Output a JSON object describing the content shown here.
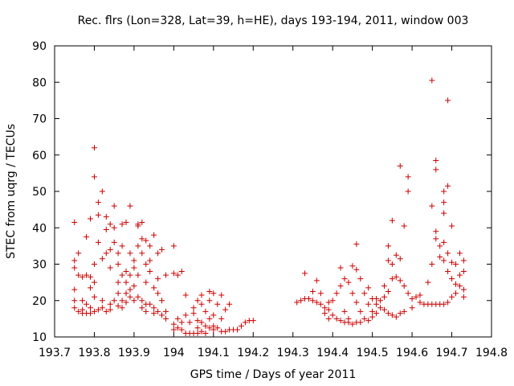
{
  "chart_data": {
    "type": "scatter",
    "title": "Rec. flrs (Lon=328, Lat=39, h=HE), days 193-194, 2011, window 003",
    "xlabel": "GPS time / Days of year 2011",
    "ylabel": "STEC from uqrg / TECUs",
    "xlim": [
      193.7,
      194.8
    ],
    "ylim": [
      10,
      90
    ],
    "xticks": [
      193.7,
      193.8,
      193.9,
      194.0,
      194.1,
      194.2,
      194.3,
      194.4,
      194.5,
      194.6,
      194.7,
      194.8
    ],
    "xtick_labels": [
      "193.7",
      "193.8",
      "193.9",
      "194",
      "194.1",
      "194.2",
      "194.3",
      "194.4",
      "194.5",
      "194.6",
      "194.7",
      "194.8"
    ],
    "yticks": [
      10,
      20,
      30,
      40,
      50,
      60,
      70,
      80,
      90
    ],
    "ytick_labels": [
      "10",
      "20",
      "30",
      "40",
      "50",
      "60",
      "70",
      "80",
      "90"
    ],
    "grid": false,
    "marker": "plus",
    "color": "#cc0000",
    "series": [
      {
        "points": [
          [
            193.75,
            41.5
          ],
          [
            193.75,
            31
          ],
          [
            193.75,
            29
          ],
          [
            193.75,
            23
          ],
          [
            193.75,
            20
          ],
          [
            193.75,
            18
          ],
          [
            193.76,
            33
          ],
          [
            193.76,
            27
          ],
          [
            193.76,
            17
          ],
          [
            193.77,
            26.5
          ],
          [
            193.77,
            20
          ],
          [
            193.77,
            17.5
          ],
          [
            193.77,
            16.5
          ],
          [
            193.78,
            37.5
          ],
          [
            193.78,
            27
          ],
          [
            193.78,
            19
          ],
          [
            193.78,
            16.5
          ],
          [
            193.79,
            26.5
          ],
          [
            193.79,
            23.5
          ],
          [
            193.79,
            18
          ],
          [
            193.79,
            16.5
          ],
          [
            193.79,
            42.5
          ],
          [
            193.8,
            62
          ],
          [
            193.8,
            54
          ],
          [
            193.8,
            30
          ],
          [
            193.8,
            25
          ],
          [
            193.8,
            21
          ],
          [
            193.8,
            17
          ],
          [
            193.81,
            47
          ],
          [
            193.81,
            43.5
          ],
          [
            193.81,
            36
          ],
          [
            193.81,
            17.5
          ],
          [
            193.82,
            50
          ],
          [
            193.82,
            31.5
          ],
          [
            193.82,
            20
          ],
          [
            193.82,
            18
          ],
          [
            193.83,
            43
          ],
          [
            193.83,
            39.5
          ],
          [
            193.83,
            33
          ],
          [
            193.83,
            17
          ],
          [
            193.84,
            41
          ],
          [
            193.84,
            34
          ],
          [
            193.84,
            29
          ],
          [
            193.84,
            19
          ],
          [
            193.84,
            17.5
          ],
          [
            193.85,
            46
          ],
          [
            193.85,
            40
          ],
          [
            193.85,
            36
          ],
          [
            193.85,
            20
          ],
          [
            193.86,
            33
          ],
          [
            193.86,
            30
          ],
          [
            193.86,
            25
          ],
          [
            193.86,
            22
          ],
          [
            193.86,
            18.5
          ],
          [
            193.87,
            41
          ],
          [
            193.87,
            35
          ],
          [
            193.87,
            27
          ],
          [
            193.87,
            20
          ],
          [
            193.87,
            18
          ],
          [
            193.88,
            41.5
          ],
          [
            193.88,
            28
          ],
          [
            193.88,
            25
          ],
          [
            193.88,
            22
          ],
          [
            193.88,
            19.5
          ],
          [
            193.89,
            46
          ],
          [
            193.89,
            33
          ],
          [
            193.89,
            27
          ],
          [
            193.89,
            23
          ],
          [
            193.89,
            21
          ],
          [
            193.9,
            31
          ],
          [
            193.9,
            29
          ],
          [
            193.9,
            24
          ],
          [
            193.9,
            20
          ],
          [
            193.91,
            41
          ],
          [
            193.91,
            40.5
          ],
          [
            193.91,
            35
          ],
          [
            193.91,
            27
          ],
          [
            193.91,
            21
          ],
          [
            193.92,
            41.5
          ],
          [
            193.92,
            37
          ],
          [
            193.92,
            33
          ],
          [
            193.92,
            20
          ],
          [
            193.92,
            18
          ],
          [
            193.93,
            36.5
          ],
          [
            193.93,
            30
          ],
          [
            193.93,
            25
          ],
          [
            193.93,
            19
          ],
          [
            193.93,
            17
          ],
          [
            193.94,
            35
          ],
          [
            193.94,
            31
          ],
          [
            193.94,
            28
          ],
          [
            193.94,
            19
          ],
          [
            193.95,
            38
          ],
          [
            193.95,
            23.5
          ],
          [
            193.95,
            18
          ],
          [
            193.95,
            16.5
          ],
          [
            193.96,
            33
          ],
          [
            193.96,
            26
          ],
          [
            193.96,
            22
          ],
          [
            193.96,
            17
          ],
          [
            193.97,
            34
          ],
          [
            193.97,
            20
          ],
          [
            193.97,
            16
          ],
          [
            193.98,
            27
          ],
          [
            193.98,
            17
          ],
          [
            193.98,
            15
          ],
          [
            194.0,
            35
          ],
          [
            194.0,
            27.5
          ],
          [
            194.0,
            13.5
          ],
          [
            194.0,
            12
          ],
          [
            194.01,
            27
          ],
          [
            194.01,
            15
          ],
          [
            194.01,
            12.5
          ],
          [
            194.02,
            28
          ],
          [
            194.02,
            14
          ],
          [
            194.02,
            12
          ],
          [
            194.03,
            21.5
          ],
          [
            194.03,
            16
          ],
          [
            194.03,
            11
          ],
          [
            194.04,
            14
          ],
          [
            194.04,
            11
          ],
          [
            194.05,
            18
          ],
          [
            194.05,
            16.5
          ],
          [
            194.05,
            11
          ],
          [
            194.06,
            20
          ],
          [
            194.06,
            14.5
          ],
          [
            194.06,
            12.5
          ],
          [
            194.06,
            11
          ],
          [
            194.07,
            21.5
          ],
          [
            194.07,
            19
          ],
          [
            194.07,
            14
          ],
          [
            194.07,
            11.5
          ],
          [
            194.08,
            17
          ],
          [
            194.08,
            13
          ],
          [
            194.08,
            11
          ],
          [
            194.09,
            22.5
          ],
          [
            194.09,
            20
          ],
          [
            194.09,
            15
          ],
          [
            194.09,
            12.5
          ],
          [
            194.1,
            22
          ],
          [
            194.1,
            16
          ],
          [
            194.1,
            13
          ],
          [
            194.1,
            12
          ],
          [
            194.11,
            19
          ],
          [
            194.11,
            12.5
          ],
          [
            194.12,
            21.5
          ],
          [
            194.12,
            15
          ],
          [
            194.12,
            11.5
          ],
          [
            194.13,
            17.5
          ],
          [
            194.13,
            11.5
          ],
          [
            194.14,
            19
          ],
          [
            194.14,
            12
          ],
          [
            194.15,
            12
          ],
          [
            194.16,
            12
          ],
          [
            194.17,
            13
          ],
          [
            194.18,
            14
          ],
          [
            194.19,
            14.5
          ],
          [
            194.2,
            14.5
          ],
          [
            194.31,
            19.5
          ],
          [
            194.32,
            20
          ],
          [
            194.33,
            20.5
          ],
          [
            194.33,
            27.5
          ],
          [
            194.34,
            20.5
          ],
          [
            194.35,
            22.5
          ],
          [
            194.35,
            20
          ],
          [
            194.36,
            25.5
          ],
          [
            194.36,
            19.5
          ],
          [
            194.37,
            19
          ],
          [
            194.37,
            22
          ],
          [
            194.38,
            18
          ],
          [
            194.38,
            16.5
          ],
          [
            194.39,
            19.5
          ],
          [
            194.39,
            17.5
          ],
          [
            194.39,
            15
          ],
          [
            194.4,
            20
          ],
          [
            194.4,
            16
          ],
          [
            194.41,
            22
          ],
          [
            194.41,
            15
          ],
          [
            194.42,
            29
          ],
          [
            194.42,
            24
          ],
          [
            194.42,
            14.5
          ],
          [
            194.43,
            26
          ],
          [
            194.43,
            17
          ],
          [
            194.43,
            14
          ],
          [
            194.44,
            25
          ],
          [
            194.44,
            15
          ],
          [
            194.44,
            14
          ],
          [
            194.45,
            29.5
          ],
          [
            194.45,
            22
          ],
          [
            194.45,
            13.5
          ],
          [
            194.46,
            35.5
          ],
          [
            194.46,
            28.5
          ],
          [
            194.46,
            19.5
          ],
          [
            194.46,
            14
          ],
          [
            194.47,
            26
          ],
          [
            194.47,
            17
          ],
          [
            194.47,
            14
          ],
          [
            194.48,
            22
          ],
          [
            194.48,
            15
          ],
          [
            194.49,
            23.5
          ],
          [
            194.49,
            19
          ],
          [
            194.49,
            14.5
          ],
          [
            194.5,
            20.5
          ],
          [
            194.5,
            17
          ],
          [
            194.5,
            15.5
          ],
          [
            194.51,
            20.5
          ],
          [
            194.51,
            19
          ],
          [
            194.51,
            16.5
          ],
          [
            194.52,
            20
          ],
          [
            194.52,
            18
          ],
          [
            194.53,
            24
          ],
          [
            194.53,
            21
          ],
          [
            194.53,
            17.5
          ],
          [
            194.54,
            31
          ],
          [
            194.54,
            35
          ],
          [
            194.54,
            22.5
          ],
          [
            194.54,
            16.5
          ],
          [
            194.55,
            42
          ],
          [
            194.55,
            30
          ],
          [
            194.55,
            26
          ],
          [
            194.55,
            16
          ],
          [
            194.56,
            32.5
          ],
          [
            194.56,
            26.5
          ],
          [
            194.56,
            15.5
          ],
          [
            194.57,
            57
          ],
          [
            194.57,
            31.5
          ],
          [
            194.57,
            25.5
          ],
          [
            194.57,
            16.5
          ],
          [
            194.58,
            40.5
          ],
          [
            194.58,
            24
          ],
          [
            194.58,
            17
          ],
          [
            194.59,
            54
          ],
          [
            194.59,
            50
          ],
          [
            194.59,
            22
          ],
          [
            194.6,
            20.5
          ],
          [
            194.6,
            18
          ],
          [
            194.61,
            21
          ],
          [
            194.62,
            21.5
          ],
          [
            194.62,
            19.5
          ],
          [
            194.63,
            19
          ],
          [
            194.64,
            25
          ],
          [
            194.64,
            19
          ],
          [
            194.65,
            80.5
          ],
          [
            194.65,
            46
          ],
          [
            194.65,
            30
          ],
          [
            194.65,
            19
          ],
          [
            194.66,
            58.5
          ],
          [
            194.66,
            56
          ],
          [
            194.66,
            39
          ],
          [
            194.66,
            37
          ],
          [
            194.66,
            19
          ],
          [
            194.67,
            35
          ],
          [
            194.67,
            32
          ],
          [
            194.67,
            19
          ],
          [
            194.68,
            50
          ],
          [
            194.68,
            47
          ],
          [
            194.68,
            44
          ],
          [
            194.68,
            36
          ],
          [
            194.68,
            31
          ],
          [
            194.68,
            19
          ],
          [
            194.69,
            75
          ],
          [
            194.69,
            51.5
          ],
          [
            194.69,
            33
          ],
          [
            194.69,
            28
          ],
          [
            194.69,
            19.5
          ],
          [
            194.7,
            40.5
          ],
          [
            194.7,
            30.5
          ],
          [
            194.7,
            26
          ],
          [
            194.7,
            21
          ],
          [
            194.71,
            30
          ],
          [
            194.71,
            24.5
          ],
          [
            194.71,
            22
          ],
          [
            194.72,
            33
          ],
          [
            194.72,
            27
          ],
          [
            194.72,
            24
          ],
          [
            194.73,
            31
          ],
          [
            194.73,
            28
          ],
          [
            194.73,
            23
          ],
          [
            194.73,
            21
          ]
        ]
      }
    ]
  }
}
